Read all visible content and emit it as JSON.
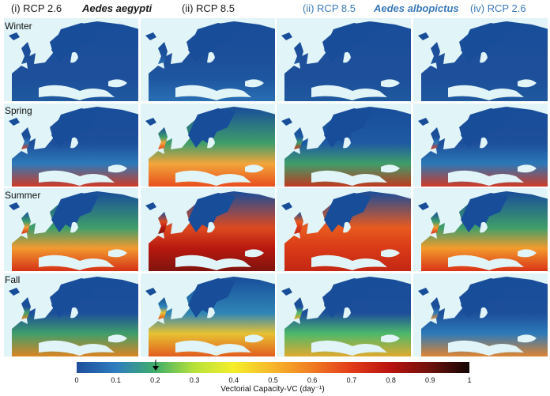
{
  "headers": {
    "col1": "(i) RCP 2.6",
    "species1": "Aedes aegypti",
    "col2": "(ii) RCP 8.5",
    "col3": "(ii) RCP 8.5",
    "species2": "Aedes albopictus",
    "col4": "(iv) RCP 2.6"
  },
  "rows": [
    {
      "label": "Winter"
    },
    {
      "label": "Spring"
    },
    {
      "label": "Summer"
    },
    {
      "label": "Fall"
    }
  ],
  "colorbar": {
    "title": "Vectorial Capacity-VC (day⁻¹)",
    "ticks": [
      "0",
      "0.1",
      "0.2",
      "0.3",
      "0.4",
      "0.5",
      "0.6",
      "0.7",
      "0.8",
      "0.9",
      "1"
    ],
    "marker_value": 0.2,
    "colors": [
      "#1f4e9c",
      "#2e7dbf",
      "#3fae6a",
      "#b8e23a",
      "#f5ee2a",
      "#f7b62b",
      "#f07b22",
      "#e23b1a",
      "#b8130f",
      "#6e120c",
      "#120505"
    ]
  },
  "colors": {
    "sea": "#e1f4f7",
    "land_low": "#184d9a"
  }
}
